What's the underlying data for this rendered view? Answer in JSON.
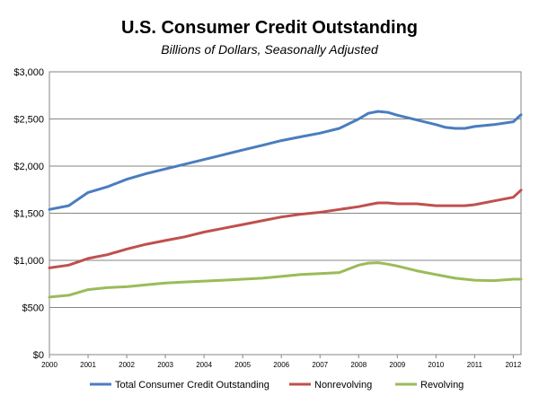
{
  "chart_data": {
    "type": "line",
    "title": "U.S. Consumer Credit Outstanding",
    "subtitle": "Billions of Dollars, Seasonally Adjusted",
    "xlabel": "",
    "ylabel": "",
    "x_ticks": [
      "2000",
      "2001",
      "2002",
      "2003",
      "2004",
      "2005",
      "2006",
      "2007",
      "2008",
      "2009",
      "2010",
      "2011",
      "2012"
    ],
    "y_ticks": [
      "$0",
      "$500",
      "$1,000",
      "$1,500",
      "$2,000",
      "$2,500",
      "$3,000"
    ],
    "xlim": [
      2000,
      2012.2
    ],
    "ylim": [
      0,
      3000
    ],
    "grid": "horizontal",
    "legend": "bottom",
    "x": [
      2000,
      2000.5,
      2001,
      2001.5,
      2002,
      2002.5,
      2003,
      2003.5,
      2004,
      2004.5,
      2005,
      2005.5,
      2006,
      2006.5,
      2007,
      2007.5,
      2008,
      2008.25,
      2008.5,
      2008.75,
      2009,
      2009.5,
      2010,
      2010.25,
      2010.5,
      2010.75,
      2011,
      2011.5,
      2012,
      2012.2
    ],
    "series": [
      {
        "name": "Total Consumer Credit Outstanding",
        "color": "#4a7dbf",
        "values": [
          1540,
          1580,
          1720,
          1780,
          1860,
          1920,
          1970,
          2020,
          2070,
          2120,
          2170,
          2220,
          2270,
          2310,
          2350,
          2400,
          2500,
          2560,
          2580,
          2570,
          2540,
          2490,
          2440,
          2410,
          2400,
          2400,
          2420,
          2440,
          2470,
          2545
        ]
      },
      {
        "name": "Nonrevolving",
        "color": "#c0504d",
        "values": [
          920,
          950,
          1020,
          1060,
          1120,
          1170,
          1210,
          1250,
          1300,
          1340,
          1380,
          1420,
          1460,
          1490,
          1510,
          1540,
          1570,
          1590,
          1610,
          1610,
          1600,
          1600,
          1580,
          1580,
          1580,
          1580,
          1590,
          1630,
          1670,
          1745
        ]
      },
      {
        "name": "Revolving",
        "color": "#9bbb59",
        "values": [
          610,
          630,
          690,
          710,
          720,
          740,
          760,
          770,
          780,
          790,
          800,
          810,
          830,
          850,
          860,
          870,
          950,
          970,
          975,
          960,
          940,
          890,
          850,
          830,
          810,
          800,
          790,
          785,
          800,
          800
        ]
      }
    ]
  }
}
